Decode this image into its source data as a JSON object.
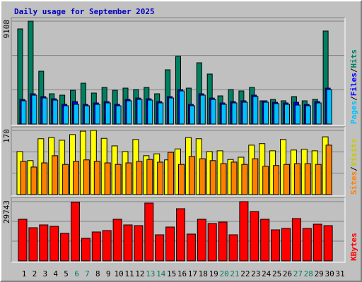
{
  "title": "Daily usage for September 2025",
  "categories": [
    "1",
    "2",
    "3",
    "4",
    "5",
    "6",
    "7",
    "8",
    "9",
    "10",
    "11",
    "12",
    "13",
    "14",
    "15",
    "16",
    "17",
    "18",
    "19",
    "20",
    "21",
    "22",
    "23",
    "24",
    "25",
    "26",
    "27",
    "28",
    "29",
    "30",
    "31"
  ],
  "weekend_indices": [
    5,
    6,
    12,
    13,
    19,
    20,
    26,
    27
  ],
  "weekend_color": "#008060",
  "separator": "/",
  "chart_data": [
    {
      "type": "bar",
      "ylim": [
        0,
        9108
      ],
      "yticks": [
        9108
      ],
      "gridlines": [
        3036,
        6072
      ],
      "series": [
        {
          "name": "Hits",
          "color": "#008060",
          "label_color": "#008060",
          "values": [
            8422,
            9108,
            4679,
            2682,
            2558,
            2994,
            3618,
            2745,
            3244,
            2994,
            3182,
            3057,
            3244,
            2682,
            4804,
            5989,
            3182,
            5427,
            4429,
            2495,
            3057,
            2932,
            3244,
            2059,
            2183,
            2059,
            2433,
            2059,
            2183,
            8235,
            null
          ]
        },
        {
          "name": "Files",
          "color": "#0000ff",
          "label_color": "#0000ff",
          "values": [
            2180,
            2680,
            2430,
            2240,
            1750,
            1990,
            1740,
            1870,
            1990,
            1750,
            2180,
            2300,
            2240,
            1990,
            2430,
            3050,
            1740,
            2680,
            2300,
            1870,
            1990,
            2060,
            2560,
            2060,
            1930,
            1870,
            1930,
            1740,
            1990,
            3180,
            null
          ]
        },
        {
          "name": "Pages",
          "color": "#00c0ff",
          "label_color": "#00c0ff",
          "values": [
            2059,
            2558,
            2308,
            2121,
            1622,
            1747,
            1622,
            1747,
            1872,
            1622,
            2059,
            2183,
            2121,
            1872,
            2308,
            2932,
            1622,
            2558,
            2183,
            1747,
            1872,
            1934,
            2433,
            1934,
            1809,
            1747,
            1684,
            1622,
            1872,
            3057,
            null
          ]
        }
      ]
    },
    {
      "type": "bar",
      "ylim": [
        0,
        170
      ],
      "yticks": [
        170
      ],
      "gridlines": [
        57,
        113
      ],
      "series": [
        {
          "name": "Visits",
          "color": "#ffff00",
          "label_color": "#c8c800",
          "values": [
            114,
            90,
            148,
            151,
            144,
            159,
            168,
            170,
            149,
            129,
            114,
            146,
            103,
            108,
            92,
            121,
            151,
            148,
            114,
            116,
            93,
            99,
            131,
            135,
            116,
            146,
            118,
            120,
            116,
            153,
            null
          ]
        },
        {
          "name": "Sites",
          "color": "#ff8000",
          "label_color": "#ff8000",
          "values": [
            88,
            73,
            84,
            103,
            80,
            88,
            92,
            88,
            84,
            80,
            84,
            88,
            93,
            86,
            112,
            80,
            101,
            95,
            90,
            82,
            86,
            80,
            95,
            75,
            77,
            80,
            82,
            82,
            80,
            131,
            null
          ]
        }
      ]
    },
    {
      "type": "bar",
      "ylim": [
        0,
        29743
      ],
      "yticks": [
        29743
      ],
      "gridlines": [
        9914,
        19829
      ],
      "series": [
        {
          "name": "KBytes",
          "color": "#ff0000",
          "label_color": "#ff0000",
          "values": [
            20891,
            16642,
            18058,
            17350,
            13809,
            29389,
            11331,
            14518,
            15226,
            20891,
            18058,
            17704,
            29035,
            13101,
            16996,
            26202,
            13455,
            20891,
            18767,
            19475,
            13101,
            29743,
            24786,
            20891,
            15580,
            16288,
            21245,
            16288,
            18412,
            17704,
            null
          ]
        }
      ]
    }
  ]
}
